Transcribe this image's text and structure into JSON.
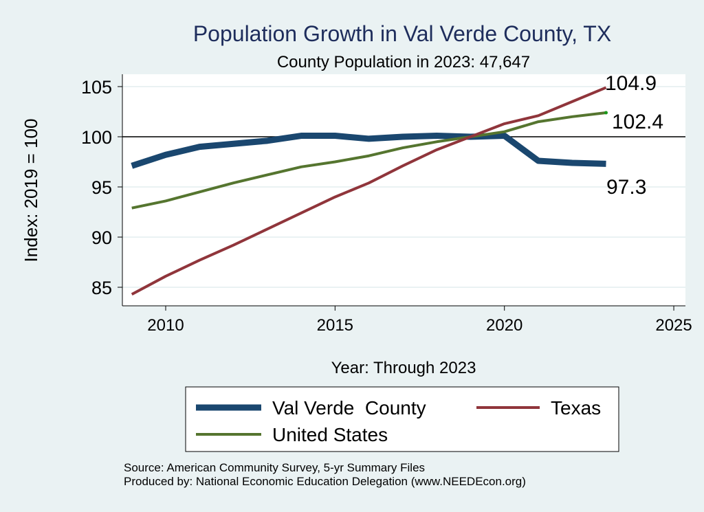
{
  "chart_data": {
    "type": "line",
    "title": "Population Growth in Val Verde County, TX",
    "subtitle": "County Population in 2023: 47,647",
    "xlabel": "Year: Through 2023",
    "ylabel": "Index: 2019 = 100",
    "xlim": [
      2009,
      2025
    ],
    "ylim": [
      84,
      106
    ],
    "xticks": [
      2010,
      2015,
      2020,
      2025
    ],
    "yticks": [
      85,
      90,
      95,
      100,
      105
    ],
    "grid": true,
    "reference_line": 100,
    "x": [
      2009,
      2010,
      2011,
      2012,
      2013,
      2014,
      2015,
      2016,
      2017,
      2018,
      2019,
      2020,
      2021,
      2022,
      2023
    ],
    "series": [
      {
        "name": "Val Verde  County",
        "color": "#1a476f",
        "width": 9,
        "values": [
          97.1,
          98.2,
          99.0,
          99.3,
          99.6,
          100.1,
          100.1,
          99.8,
          100.0,
          100.1,
          100.0,
          100.1,
          97.6,
          97.4,
          97.3
        ],
        "end_label": "97.3"
      },
      {
        "name": "Texas",
        "color": "#90353b",
        "width": 4,
        "values": [
          84.3,
          86.1,
          87.7,
          89.2,
          90.8,
          92.4,
          94.0,
          95.4,
          97.1,
          98.7,
          100.0,
          101.3,
          102.1,
          103.5,
          104.9
        ],
        "end_label": "104.9"
      },
      {
        "name": "United States",
        "color": "#55752f",
        "width": 4,
        "values": [
          92.9,
          93.6,
          94.5,
          95.4,
          96.2,
          97.0,
          97.5,
          98.1,
          98.9,
          99.5,
          100.0,
          100.5,
          101.5,
          102.0,
          102.4
        ],
        "end_label": "102.4"
      }
    ],
    "legend_position": "bottom",
    "notes": [
      "Source: American Community Survey, 5-yr Summary Files",
      "Produced by: National Economic Education Delegation (www.NEEDEcon.org)"
    ]
  }
}
